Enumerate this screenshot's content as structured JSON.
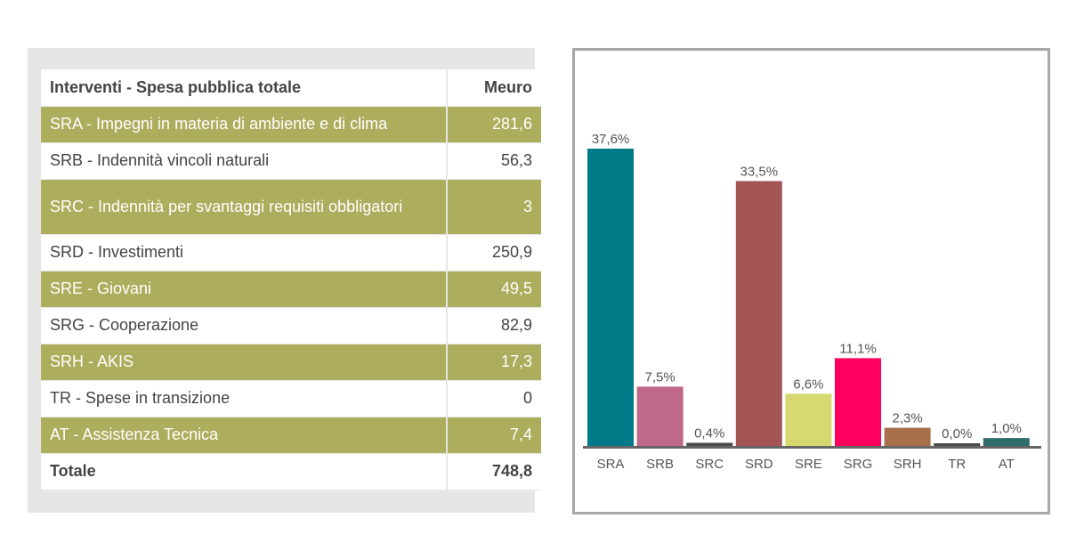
{
  "table": {
    "header": {
      "label": "Interventi - Spesa pubblica totale",
      "value": "Meuro"
    },
    "rows": [
      {
        "label": "SRA - Impegni in materia di ambiente e di clima",
        "value": "281,6"
      },
      {
        "label": "SRB - Indennità vincoli naturali",
        "value": "56,3"
      },
      {
        "label": "SRC - Indennità per svantaggi requisiti obbligatori",
        "value": "3"
      },
      {
        "label": "SRD - Investimenti",
        "value": "250,9"
      },
      {
        "label": "SRE - Giovani",
        "value": "49,5"
      },
      {
        "label": "SRG - Cooperazione",
        "value": "82,9"
      },
      {
        "label": "SRH - AKIS",
        "value": "17,3"
      },
      {
        "label": "TR - Spese in transizione",
        "value": "0"
      },
      {
        "label": "AT - Assistenza Tecnica",
        "value": "7,4"
      }
    ],
    "total": {
      "label": "Totale",
      "value": "748,8"
    },
    "colors": {
      "olive": "#adad5e",
      "white": "#ffffff"
    }
  },
  "chart_data": {
    "type": "bar",
    "categories": [
      "SRA",
      "SRB",
      "SRC",
      "SRD",
      "SRE",
      "SRG",
      "SRH",
      "TR",
      "AT"
    ],
    "values": [
      37.6,
      7.5,
      0.4,
      33.5,
      6.6,
      11.1,
      2.3,
      0.0,
      1.0
    ],
    "labels": [
      "37,6%",
      "7,5%",
      "0,4%",
      "33,5%",
      "6,6%",
      "11,1%",
      "2,3%",
      "0,0%",
      "1,0%"
    ],
    "colors": [
      "#007a87",
      "#c0688a",
      "#4a4a4a",
      "#a55454",
      "#d8d870",
      "#ff005f",
      "#a8704a",
      "#4a4a4a",
      "#2e6e6a"
    ],
    "ylim": [
      0,
      37.6
    ],
    "grid": false,
    "legend": "none"
  }
}
